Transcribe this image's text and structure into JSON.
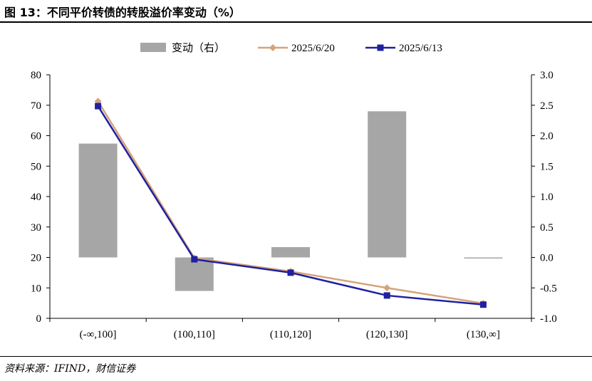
{
  "title": "图 13：不同平价转债的转股溢价率变动（%）",
  "source": "资料来源：IFIND，财信证券",
  "chart_data": {
    "type": "bar+line",
    "categories": [
      "(-∞,100]",
      "(100,110]",
      "(110,120]",
      "(120,130]",
      "(130,∞]"
    ],
    "series": [
      {
        "name": "变动（右）",
        "type": "bar",
        "axis": "right",
        "color": "#a6a6a6",
        "values": [
          1.87,
          -0.55,
          0.17,
          2.4,
          -0.01
        ]
      },
      {
        "name": "2025/6/20",
        "type": "line",
        "axis": "left",
        "color": "#d4a47a",
        "marker": "diamond",
        "values": [
          71.3,
          19.8,
          15.4,
          10.0,
          4.9
        ]
      },
      {
        "name": "2025/6/13",
        "type": "line",
        "axis": "left",
        "color": "#2020a0",
        "marker": "square",
        "values": [
          69.7,
          19.4,
          15.0,
          7.5,
          4.5
        ]
      }
    ],
    "y_left": {
      "min": 0,
      "max": 80,
      "ticks": [
        "0",
        "10",
        "20",
        "30",
        "40",
        "50",
        "60",
        "70",
        "80"
      ]
    },
    "y_right": {
      "min": -1.0,
      "max": 3.0,
      "ticks": [
        "-1.0",
        "-0.5",
        "0.0",
        "0.5",
        "1.0",
        "1.5",
        "2.0",
        "2.5",
        "3.0"
      ]
    },
    "grid": false,
    "legend_position": "top"
  }
}
